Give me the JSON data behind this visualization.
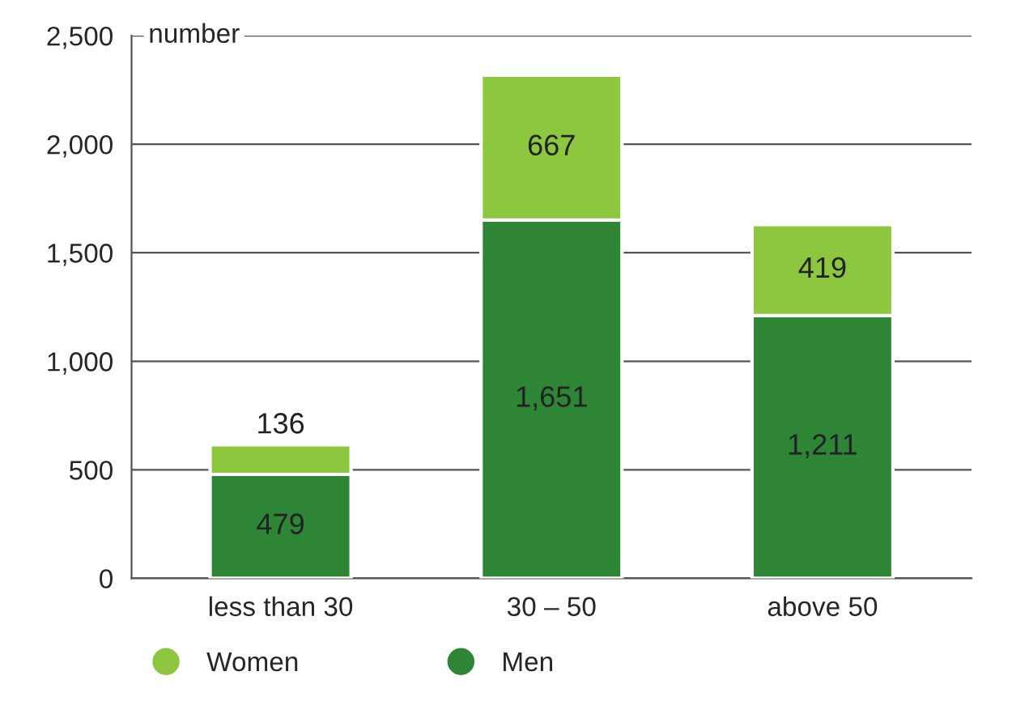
{
  "chart_data": {
    "type": "bar",
    "stacked": true,
    "ylabel": "number",
    "categories": [
      "less than 30",
      "30 – 50",
      "above 50"
    ],
    "series": [
      {
        "name": "Men",
        "color": "#2e8535",
        "values": [
          479,
          1651,
          1211
        ],
        "value_labels": [
          "479",
          "1,651",
          "1,211"
        ]
      },
      {
        "name": "Women",
        "color": "#8dc63f",
        "values": [
          136,
          667,
          419
        ],
        "value_labels": [
          "136",
          "667",
          "419"
        ]
      }
    ],
    "ylim": [
      0,
      2500
    ],
    "yticks": [
      0,
      500,
      {
        "value": 1000,
        "label": "1,000"
      },
      {
        "value": 1500,
        "label": "1,500"
      },
      {
        "value": 2000,
        "label": "2,000"
      },
      {
        "value": 2500,
        "label": "2,500"
      }
    ],
    "grid": "y",
    "legend": "bottom"
  }
}
